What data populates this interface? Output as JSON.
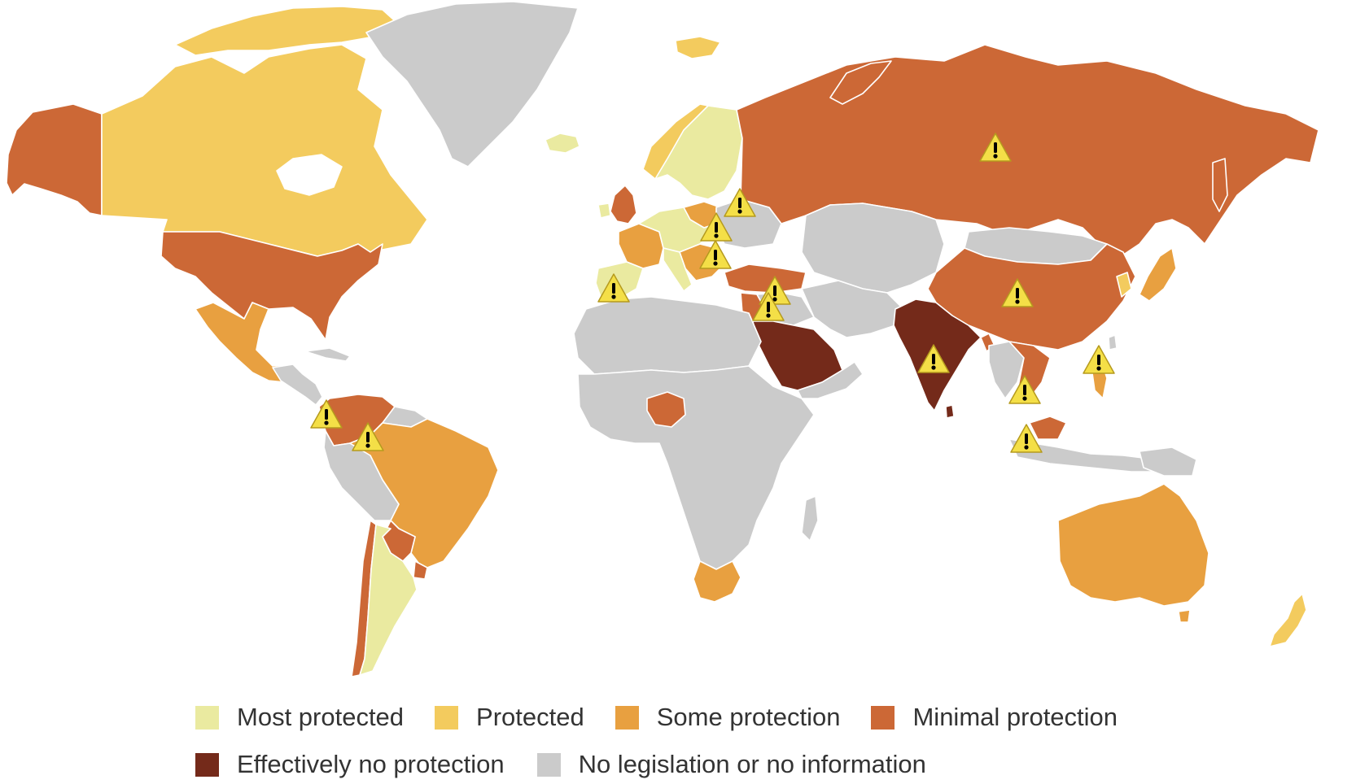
{
  "categories": {
    "most": {
      "label": "Most protected",
      "color": "#eaeaa0"
    },
    "prot": {
      "label": "Protected",
      "color": "#f3cb5e"
    },
    "some": {
      "label": "Some protection",
      "color": "#e8a040"
    },
    "min": {
      "label": "Minimal protection",
      "color": "#cc6836"
    },
    "none": {
      "label": "Effectively no protection",
      "color": "#742a1a"
    },
    "nodata": {
      "label": "No legislation or no information",
      "color": "#cbcbcb"
    }
  },
  "legend": {
    "row1": [
      "most",
      "prot",
      "some",
      "min"
    ],
    "row2": [
      "none",
      "nodata"
    ]
  },
  "marker": {
    "icon": "warning-icon",
    "fill": "#f4df47",
    "stroke": "#b59a1e",
    "glyph": "!"
  }
}
